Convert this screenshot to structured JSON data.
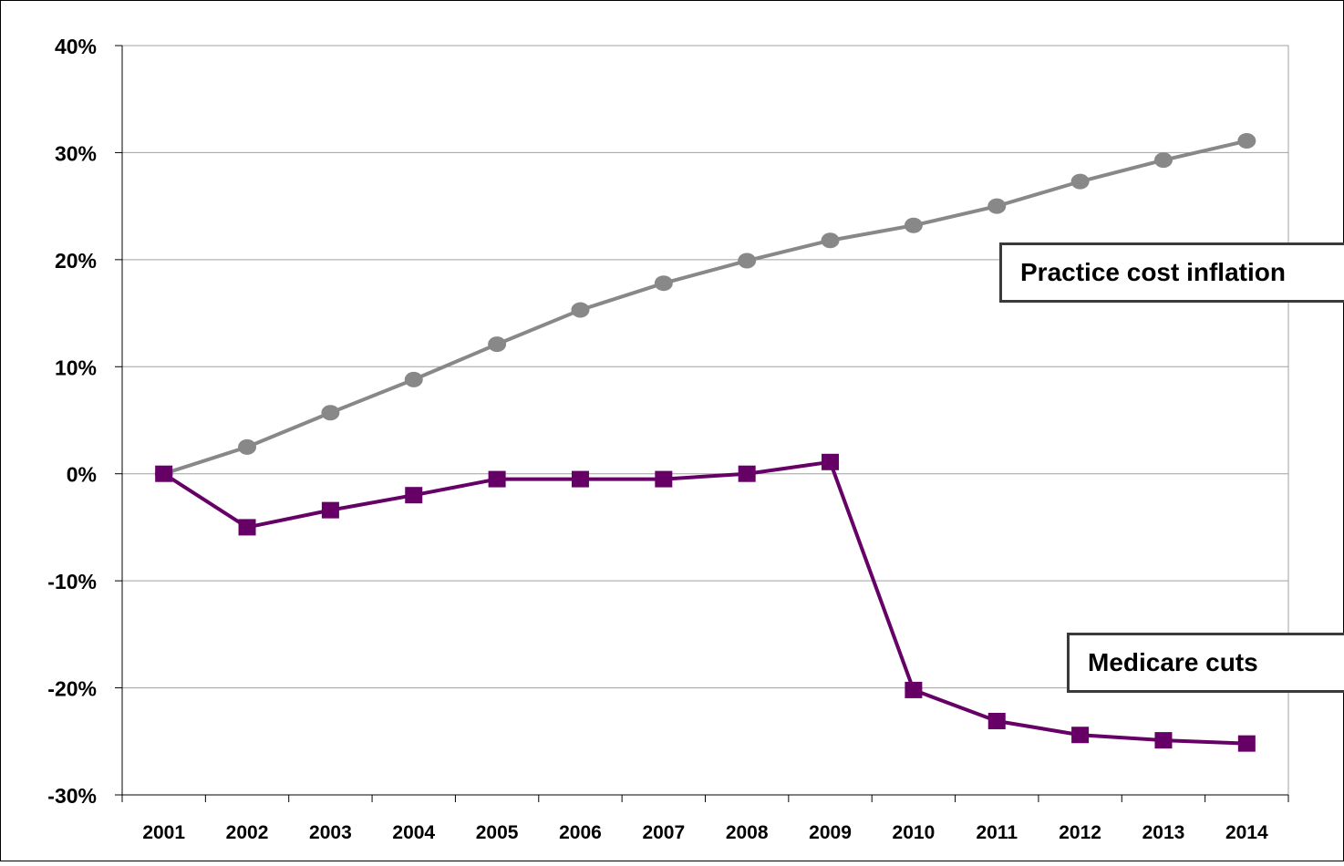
{
  "chart_data": {
    "type": "line",
    "categories": [
      "2001",
      "2002",
      "2003",
      "2004",
      "2005",
      "2006",
      "2007",
      "2008",
      "2009",
      "2010",
      "2011",
      "2012",
      "2013",
      "2014"
    ],
    "ylim": [
      -30,
      40
    ],
    "yticks": [
      -30,
      -20,
      -10,
      0,
      10,
      20,
      30,
      40
    ],
    "ytick_labels": [
      "-30%",
      "-20%",
      "-10%",
      "0%",
      "10%",
      "20%",
      "30%",
      "40%"
    ],
    "grid": true,
    "series": [
      {
        "name": "Practice cost inflation",
        "marker": "circle",
        "color": "#888888",
        "values": [
          0,
          2.5,
          5.7,
          8.8,
          12.1,
          15.3,
          17.8,
          19.9,
          21.8,
          23.2,
          25.0,
          27.3,
          29.3,
          31.1
        ]
      },
      {
        "name": "Medicare cuts",
        "marker": "square",
        "color": "#660066",
        "values": [
          0,
          -5.0,
          -3.4,
          -2.0,
          -0.5,
          -0.5,
          -0.5,
          0,
          1.1,
          -20.2,
          -23.1,
          -24.4,
          -24.9,
          -25.2
        ]
      }
    ],
    "xlabel": "",
    "ylabel": ""
  }
}
